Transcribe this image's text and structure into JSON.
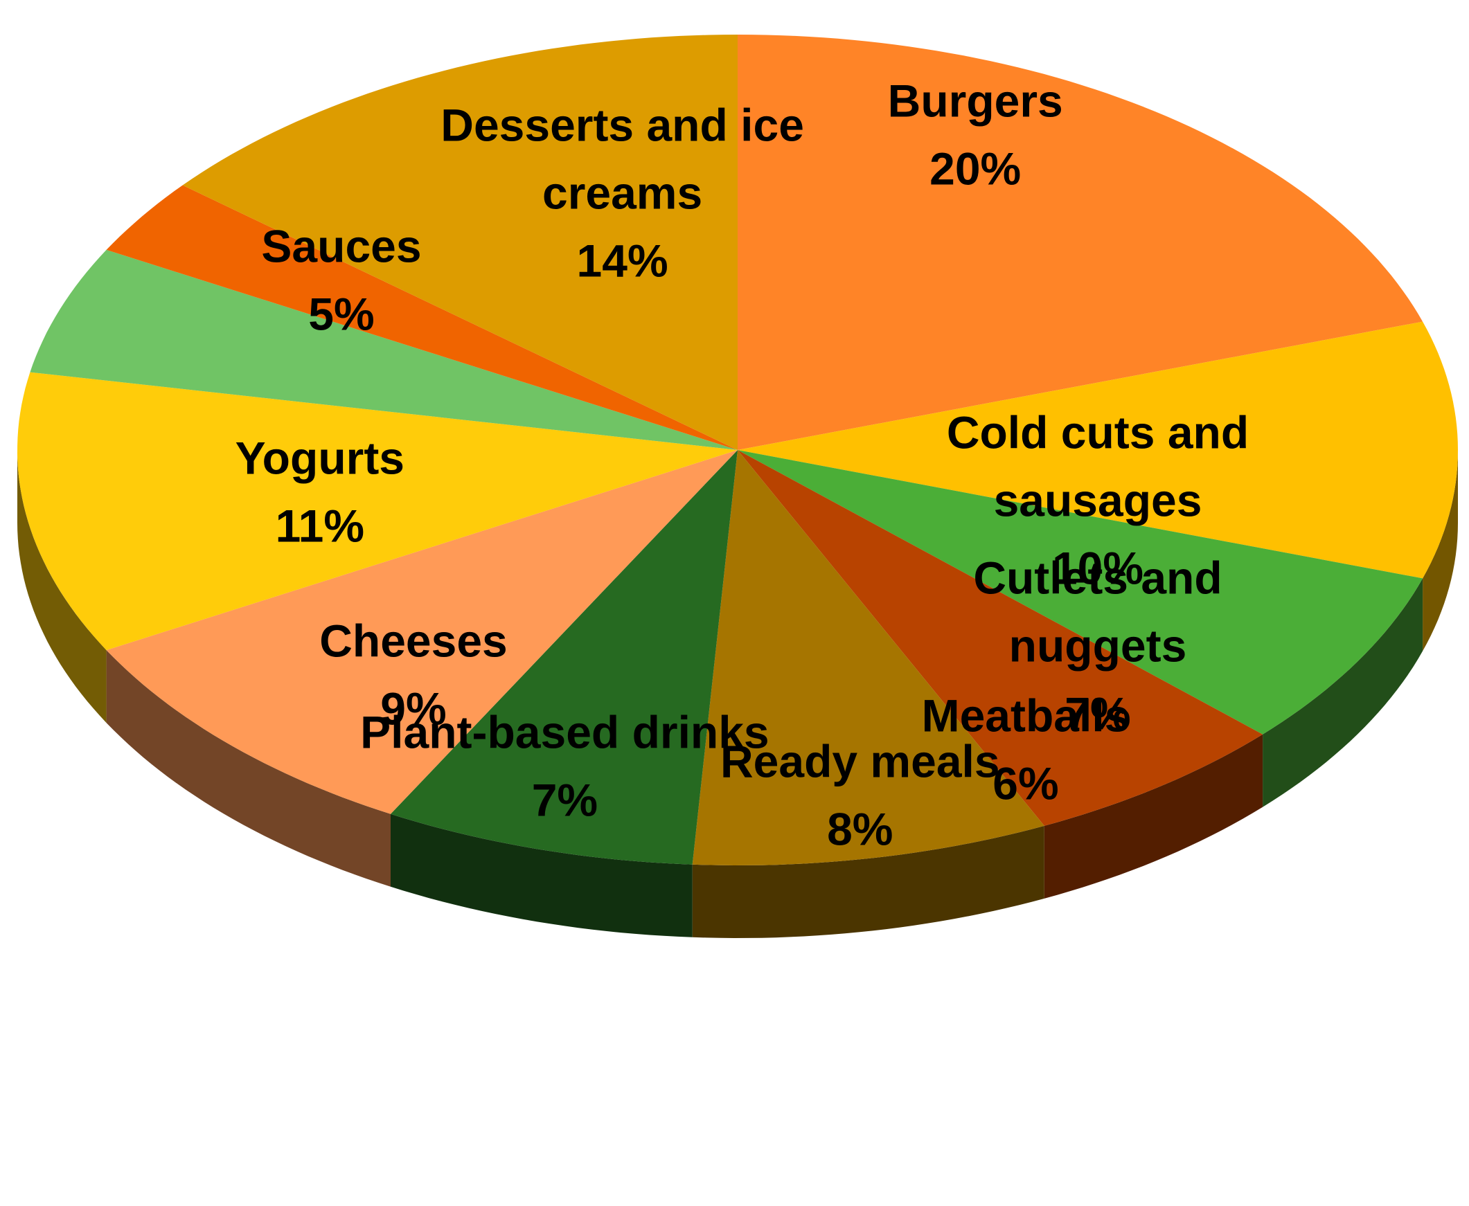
{
  "chart_data": {
    "type": "pie",
    "style": "3d",
    "title": "",
    "slices": [
      {
        "name": "Burgers",
        "label_lines": [
          "Burgers",
          "20%"
        ],
        "value": 20,
        "color": "#FF8427"
      },
      {
        "name": "Cold cuts and sausages",
        "label_lines": [
          "Cold cuts and",
          "sausages",
          "10%"
        ],
        "value": 10,
        "color": "#FFC000"
      },
      {
        "name": "Cutlets and nuggets",
        "label_lines": [
          "Cutlets and",
          "nuggets",
          "7%"
        ],
        "value": 7,
        "color": "#4BAE37"
      },
      {
        "name": "Meatballs",
        "label_lines": [
          "Meatballs",
          "6%"
        ],
        "value": 6,
        "color": "#B84300"
      },
      {
        "name": "Ready meals",
        "label_lines": [
          "Ready meals",
          "8%"
        ],
        "value": 8,
        "color": "#A67500"
      },
      {
        "name": "Plant-based drinks",
        "label_lines": [
          "Plant-based drinks",
          "7%"
        ],
        "value": 7,
        "color": "#266A21"
      },
      {
        "name": "Cheeses",
        "label_lines": [
          "Cheeses",
          "9%"
        ],
        "value": 9,
        "color": "#FF9A57"
      },
      {
        "name": "Yogurts",
        "label_lines": [
          "Yogurts",
          "11%"
        ],
        "value": 11,
        "color": "#FFCC0A"
      },
      {
        "name": "Sauces",
        "label_lines": [
          "Sauces",
          "5%"
        ],
        "value": 5,
        "color": "#70C465"
      },
      {
        "name": "",
        "label_lines": [],
        "value": 3,
        "color": "#F06400"
      },
      {
        "name": "Desserts and ice creams",
        "label_lines": [
          "Desserts and ice",
          "creams",
          "14%"
        ],
        "value": 14,
        "color": "#DD9C00"
      }
    ]
  }
}
